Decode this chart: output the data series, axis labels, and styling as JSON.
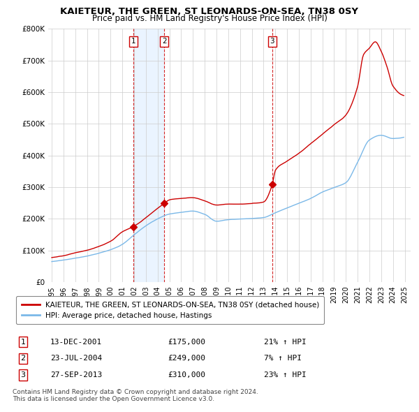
{
  "title": "KAIETEUR, THE GREEN, ST LEONARDS-ON-SEA, TN38 0SY",
  "subtitle": "Price paid vs. HM Land Registry's House Price Index (HPI)",
  "legend_line1": "KAIETEUR, THE GREEN, ST LEONARDS-ON-SEA, TN38 0SY (detached house)",
  "legend_line2": "HPI: Average price, detached house, Hastings",
  "transactions": [
    {
      "num": 1,
      "date": "13-DEC-2001",
      "date_x": 2001.95,
      "price": 175000,
      "pct": "21%",
      "dir": "↑"
    },
    {
      "num": 2,
      "date": "23-JUL-2004",
      "date_x": 2004.56,
      "price": 249000,
      "pct": "7%",
      "dir": "↑"
    },
    {
      "num": 3,
      "date": "27-SEP-2013",
      "date_x": 2013.74,
      "price": 310000,
      "pct": "23%",
      "dir": "↑"
    }
  ],
  "footnote1": "Contains HM Land Registry data © Crown copyright and database right 2024.",
  "footnote2": "This data is licensed under the Open Government Licence v3.0.",
  "hpi_color": "#7ab8e8",
  "price_color": "#cc0000",
  "vline_color": "#cc0000",
  "shade_color": "#ddeeff",
  "grid_color": "#cccccc",
  "bg_color": "#ffffff",
  "ylim": [
    0,
    800000
  ],
  "yticks": [
    0,
    100000,
    200000,
    300000,
    400000,
    500000,
    600000,
    700000,
    800000
  ],
  "xlim_start": 1994.7,
  "xlim_end": 2025.5,
  "xticks": [
    1995,
    1996,
    1997,
    1998,
    1999,
    2000,
    2001,
    2002,
    2003,
    2004,
    2005,
    2006,
    2007,
    2008,
    2009,
    2010,
    2011,
    2012,
    2013,
    2014,
    2015,
    2016,
    2017,
    2018,
    2019,
    2020,
    2021,
    2022,
    2023,
    2024,
    2025
  ]
}
